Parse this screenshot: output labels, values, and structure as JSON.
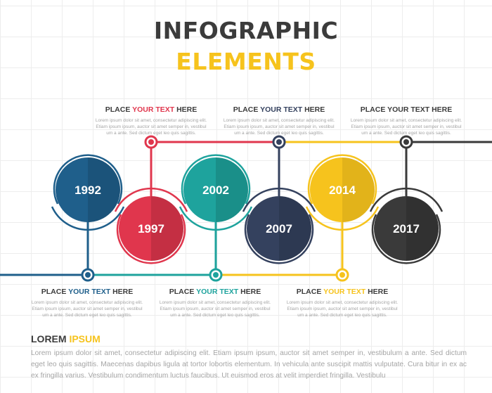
{
  "title": {
    "line1": "INFOGRAPHIC",
    "line2": "ELEMENTS"
  },
  "colors": {
    "blue": "#1f5f8b",
    "red": "#e0364d",
    "teal": "#1ea39d",
    "navy": "#34415e",
    "yellow": "#f6c31d",
    "charcoal": "#3a3a3a",
    "text": "#3c3c3c",
    "muted": "#a5a5a5"
  },
  "milestones": [
    {
      "year": "1992",
      "color": "#1f5f8b"
    },
    {
      "year": "1997",
      "color": "#e0364d"
    },
    {
      "year": "2002",
      "color": "#1ea39d"
    },
    {
      "year": "2007",
      "color": "#34415e"
    },
    {
      "year": "2014",
      "color": "#f6c31d"
    },
    {
      "year": "2017",
      "color": "#3a3a3a"
    }
  ],
  "labels": [
    {
      "prefix": "PLACE ",
      "highlight": "YOUR TEXT",
      "suffix": " HERE",
      "accent": "#e0364d",
      "lines": [
        "Lorem ipsum dolor sit amet, consectetur adipiscing elit.",
        "Etiam ipsum ipsum, auctor sit amet semper in, vestibul",
        "um a ante. Sed dictum eget leo quis sagittis."
      ]
    },
    {
      "prefix": "PLACE ",
      "highlight": "YOUR TEXT",
      "suffix": " HERE",
      "accent": "#34415e",
      "lines": [
        "Lorem ipsum dolor sit amet, consectetur adipiscing elit.",
        "Etiam ipsum ipsum, auctor sit amet semper in, vestibul",
        "um a ante. Sed dictum eget leo quis sagittis."
      ]
    },
    {
      "prefix": "PLACE ",
      "highlight": "YOUR TEXT",
      "suffix": " HERE",
      "accent": "#3c3c3c",
      "lines": [
        "Lorem ipsum dolor sit amet, consectetur adipiscing elit.",
        "Etiam ipsum ipsum, auctor sit amet semper in, vestibul",
        "um a ante. Sed dictum eget leo quis sagittis."
      ]
    },
    {
      "prefix": "PLACE ",
      "highlight": "YOUR TEXT",
      "suffix": " HERE",
      "accent": "#1f5f8b",
      "lines": [
        "Lorem ipsum dolor sit amet, consectetur adipiscing elit.",
        "Etiam ipsum ipsum, auctor sit amet semper in, vestibul",
        "um a ante. Sed dictum eget leo quis sagittis."
      ]
    },
    {
      "prefix": "PLACE ",
      "highlight": "YOUR TEXT",
      "suffix": " HERE",
      "accent": "#1ea39d",
      "lines": [
        "Lorem ipsum dolor sit amet, consectetur adipiscing elit.",
        "Etiam ipsum ipsum, auctor sit amet semper in, vestibul",
        "um a ante. Sed dictum eget leo quis sagittis."
      ]
    },
    {
      "prefix": "PLACE ",
      "highlight": "YOUR TEXT",
      "suffix": " HERE",
      "accent": "#f6c31d",
      "lines": [
        "Lorem ipsum dolor sit amet, consectetur adipiscing elit.",
        "Etiam ipsum ipsum, auctor sit amet semper in, vestibul",
        "um a ante. Sed dictum eget leo quis sagittis."
      ]
    }
  ],
  "footer": {
    "title_main": "LOREM ",
    "title_accent": "IPSUM",
    "body": "Lorem ipsum dolor sit amet, consectetur adipiscing elit. Etiam ipsum ipsum, auctor sit amet semper in, vestibulum a ante. Sed dictum eget leo quis sagittis. Maecenas dapibus ligula at tortor lobortis elementum. In vehicula ante suscipit mattis vulputate. Cura bitur in ex ac ex fringilla varius. Vestibulum condimentum luctus faucibus. Ut euismod eros at velit imperdiet fringilla. Vestibulu"
  }
}
